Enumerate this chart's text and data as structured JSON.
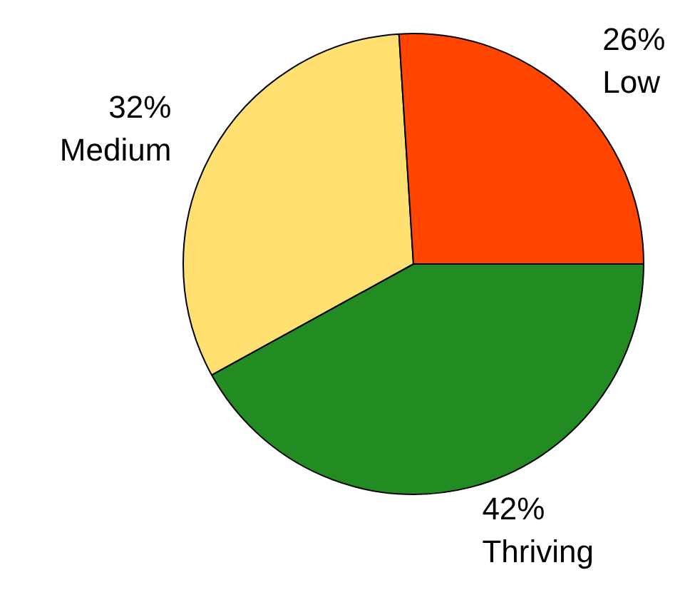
{
  "chart_data": {
    "type": "pie",
    "categories": [
      "Low",
      "Medium",
      "Thriving"
    ],
    "values": [
      26,
      32,
      42
    ],
    "value_labels": [
      "26%",
      "32%",
      "42%"
    ],
    "colors": [
      "#ff4500",
      "#ffe070",
      "#228b22"
    ],
    "legend": false
  }
}
